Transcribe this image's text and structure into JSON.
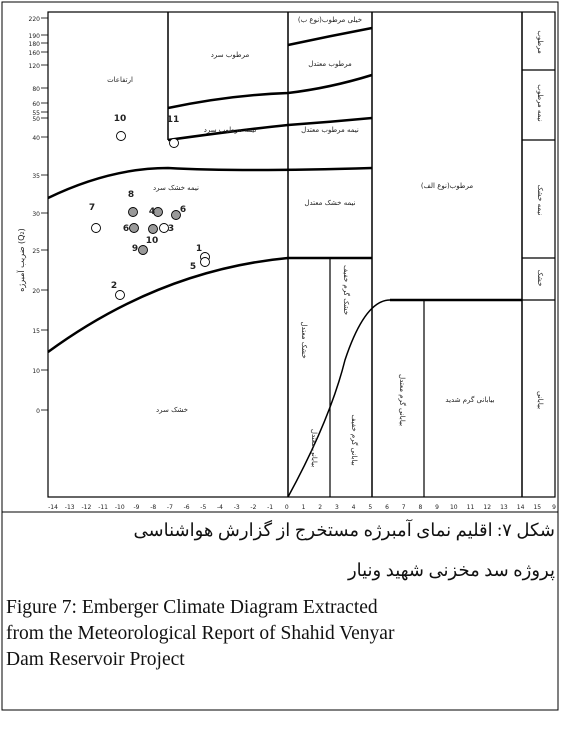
{
  "figure": {
    "y_axis_title": "ضریب آمبرژه (Q₂)",
    "y_ticks": [
      "220",
      "190",
      "180",
      "160",
      "120",
      "80",
      "60",
      "55",
      "50",
      "40",
      "35",
      "30",
      "25",
      "20",
      "15",
      "10",
      "0"
    ],
    "x_ticks": [
      "-14",
      "-13",
      "-12",
      "-11",
      "-10",
      "-9",
      "-8",
      "-7",
      "-6",
      "-5",
      "-4",
      "-3",
      "-2",
      "-1",
      "0",
      "1",
      "2",
      "3",
      "4",
      "5",
      "6",
      "7",
      "8",
      "9",
      "10",
      "11",
      "12",
      "13",
      "14",
      "15",
      "9"
    ],
    "regions": [
      "ارتفاعات",
      "مرطوب سرد",
      "خیلی مرطوب(نوع ب)",
      "مرطوب معتدل",
      "نیمه مرطوب سرد",
      "نیمه مرطوب معتدل",
      "نیمه خشک سرد",
      "نیمه خشک معتدل",
      "مرطوب(نوع الف)",
      "خشک سرد",
      "بیابانی گرم شدید"
    ],
    "vertical_labels": [
      "خشک معتدل",
      "خشک گرم خفیف",
      "بیابانی معتدل",
      "بیابانی گرم خفیف",
      "بیابانی گرم معتدل"
    ],
    "side_labels": [
      "مرطوب",
      "نیمه مرطوب",
      "نیمه خشک",
      "خشک",
      "بیابانی"
    ],
    "points": [
      "10",
      "11",
      "7",
      "8",
      "4",
      "6",
      "6",
      "10",
      "3",
      "9",
      "1",
      "5",
      "2"
    ]
  },
  "caption": {
    "fa": [
      "شکل ۷: اقلیم نمای آمبرژه مستخرج از گزارش هواشناسی",
      "پروژه سد مخزنی شهید ونیار"
    ],
    "en": [
      "Figure 7: Emberger Climate Diagram Extracted",
      "from the Meteorological Report of Shahid Venyar",
      "Dam Reservoir Project"
    ]
  }
}
